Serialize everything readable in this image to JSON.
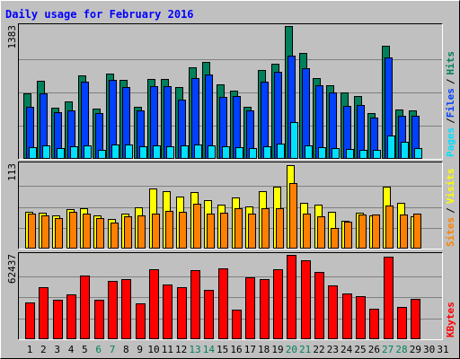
{
  "chart_data": [
    {
      "type": "bar",
      "title": "Daily usage for February 2016",
      "legend_separator": "/",
      "ylim": [
        0,
        1383
      ],
      "yticks": [
        1383
      ],
      "series": [
        {
          "name": "Hits",
          "color": "#00805c",
          "values": [
            682,
            813,
            532,
            598,
            869,
            523,
            887,
            822,
            542,
            831,
            831,
            747,
            953,
            1009,
            775,
            710,
            542,
            925,
            990,
            1383,
            1102,
            841,
            766,
            691,
            654,
            476,
            1177,
            514,
            504,
            null,
            null
          ]
        },
        {
          "name": "Files",
          "color": "#0040ff",
          "values": [
            542,
            682,
            486,
            504,
            803,
            476,
            822,
            747,
            504,
            757,
            757,
            616,
            841,
            878,
            644,
            654,
            504,
            803,
            906,
            1074,
            943,
            766,
            691,
            551,
            560,
            430,
            1055,
            448,
            448,
            null,
            null
          ]
        },
        {
          "name": "Pages",
          "color": "#00e0ff",
          "values": [
            121,
            140,
            112,
            131,
            140,
            93,
            149,
            149,
            131,
            140,
            131,
            140,
            149,
            140,
            131,
            121,
            112,
            131,
            159,
            383,
            140,
            121,
            112,
            103,
            93,
            93,
            243,
            177,
            112,
            null,
            null
          ]
        }
      ]
    },
    {
      "type": "bar",
      "legend_separator": "/",
      "ylim": [
        0,
        113
      ],
      "yticks": [
        113
      ],
      "series": [
        {
          "name": "Visits",
          "color": "#ffff00",
          "values": [
            50,
            49,
            45,
            53,
            55,
            45,
            40,
            47,
            56,
            81,
            78,
            70,
            77,
            66,
            60,
            69,
            57,
            78,
            84,
            113,
            62,
            60,
            50,
            38,
            49,
            45,
            84,
            62,
            44,
            null,
            null
          ]
        },
        {
          "name": "Sites",
          "color": "#ff8000",
          "values": [
            47,
            45,
            41,
            50,
            47,
            41,
            35,
            44,
            45,
            47,
            51,
            50,
            61,
            47,
            49,
            55,
            47,
            55,
            55,
            89,
            47,
            44,
            28,
            36,
            46,
            46,
            58,
            46,
            47,
            null,
            null
          ]
        }
      ]
    },
    {
      "type": "bar",
      "ylim": [
        0,
        62437
      ],
      "yticks": [
        62437
      ],
      "categories": [
        "1",
        "2",
        "3",
        "4",
        "5",
        "6",
        "7",
        "8",
        "9",
        "10",
        "11",
        "12",
        "13",
        "14",
        "15",
        "16",
        "17",
        "18",
        "19",
        "20",
        "21",
        "22",
        "23",
        "24",
        "25",
        "26",
        "27",
        "28",
        "29",
        "30",
        "31"
      ],
      "category_colors": [
        "#000000",
        "#000000",
        "#000000",
        "#000000",
        "#000000",
        "#00805c",
        "#00805c",
        "#000000",
        "#000000",
        "#000000",
        "#000000",
        "#000000",
        "#00805c",
        "#00805c",
        "#000000",
        "#000000",
        "#000000",
        "#000000",
        "#000000",
        "#00805c",
        "#00805c",
        "#000000",
        "#000000",
        "#000000",
        "#000000",
        "#000000",
        "#00805c",
        "#00805c",
        "#000000",
        "#000000",
        "#000000"
      ],
      "series": [
        {
          "name": "KBytes",
          "color": "#ff0000",
          "values": [
            27224,
            38512,
            29216,
            33200,
            47144,
            29216,
            43160,
            44488,
            26560,
            51792,
            40504,
            38512,
            51128,
            36520,
            52456,
            21912,
            45816,
            44488,
            51792,
            62437,
            58432,
            49800,
            39840,
            33864,
            31872,
            22576,
            61088,
            23904,
            29880,
            null,
            null
          ]
        }
      ]
    }
  ]
}
